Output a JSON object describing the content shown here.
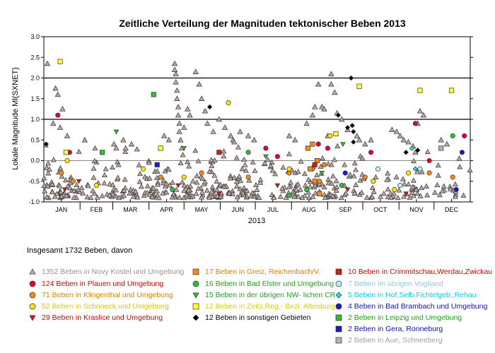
{
  "chart_data": {
    "type": "scatter",
    "title": "Zeitliche Verteilung der Magnituden tektonischer Beben 2013",
    "xlabel": "2013",
    "ylabel": "Lokale Magnitude Ml(SXNET)",
    "ylim": [
      -1.0,
      3.0
    ],
    "yticks": [
      "-1.0",
      "-0.5",
      "0.0",
      "0.5",
      "1.0",
      "1.5",
      "2.0",
      "2.5",
      "3.0"
    ],
    "months": [
      "JAN",
      "FEB",
      "MAR",
      "APR",
      "MAY",
      "JUN",
      "JUL",
      "AUG",
      "SEP",
      "OCT",
      "NOV",
      "DEC"
    ],
    "reference_lines": [
      1.0,
      2.0
    ],
    "summary": "Insgesamt 1732 Beben, davon",
    "series": [
      {
        "name": "1352 Beben in Novy Kostel und Umgebung",
        "count": 1352,
        "marker": "triangle-up",
        "color": "#bfa9a4",
        "points": [
          [
            3,
            2.35
          ],
          [
            8,
            0.9
          ],
          [
            10,
            1.75
          ],
          [
            12,
            1.6
          ],
          [
            14,
            0.8
          ],
          [
            16,
            1.25
          ],
          [
            20,
            0.6
          ],
          [
            35,
            0.5
          ],
          [
            60,
            0.4
          ],
          [
            62,
            0.3
          ],
          [
            68,
            0.5
          ],
          [
            70,
            0.3
          ],
          [
            75,
            0.4
          ],
          [
            100,
            0.3
          ],
          [
            103,
            0.6
          ],
          [
            107,
            0.5
          ],
          [
            112,
            2.35
          ],
          [
            112,
            2.2
          ],
          [
            113,
            2.1
          ],
          [
            113,
            1.9
          ],
          [
            114,
            1.7
          ],
          [
            114,
            1.5
          ],
          [
            115,
            1.3
          ],
          [
            115,
            1.1
          ],
          [
            116,
            0.9
          ],
          [
            116,
            0.7
          ],
          [
            117,
            0.5
          ],
          [
            118,
            0.3
          ],
          [
            120,
            0.8
          ],
          [
            123,
            1.25
          ],
          [
            125,
            1.1
          ],
          [
            130,
            2.15
          ],
          [
            133,
            1.85
          ],
          [
            135,
            1.5
          ],
          [
            138,
            1.2
          ],
          [
            140,
            0.9
          ],
          [
            145,
            0.7
          ],
          [
            150,
            1.0
          ],
          [
            155,
            0.8
          ],
          [
            160,
            0.6
          ],
          [
            162,
            0.5
          ],
          [
            163,
            0.45
          ],
          [
            168,
            0.7
          ],
          [
            175,
            0.6
          ],
          [
            180,
            0.5
          ],
          [
            210,
            0.6
          ],
          [
            215,
            0.5
          ],
          [
            225,
            0.9
          ],
          [
            230,
            1.1
          ],
          [
            232,
            1.3
          ],
          [
            235,
            1.85
          ],
          [
            238,
            1.3
          ],
          [
            240,
            1.25
          ],
          [
            243,
            0.6
          ],
          [
            246,
            2.1
          ],
          [
            246,
            1.85
          ],
          [
            249,
            1.65
          ],
          [
            251,
            1.15
          ],
          [
            255,
            1.0
          ],
          [
            260,
            0.75
          ],
          [
            268,
            0.6
          ],
          [
            270,
            0.5
          ],
          [
            275,
            0.4
          ],
          [
            280,
            0.5
          ],
          [
            298,
            0.75
          ],
          [
            302,
            0.7
          ],
          [
            305,
            0.6
          ],
          [
            308,
            0.5
          ],
          [
            312,
            0.45
          ],
          [
            316,
            0.35
          ],
          [
            318,
            0.2
          ],
          [
            320,
            0.9
          ],
          [
            322,
            1.2
          ],
          [
            325,
            1.1
          ],
          [
            340,
            0.5
          ],
          [
            345,
            0.4
          ]
        ]
      },
      {
        "name": "124 Beben in Plauen und Umgebung",
        "count": 124,
        "marker": "circle",
        "color": "#e3002b",
        "points": [
          [
            12,
            1.1
          ],
          [
            22,
            0.2
          ],
          [
            190,
            0.3
          ],
          [
            200,
            0.1
          ],
          [
            235,
            0.4
          ],
          [
            243,
            0.3
          ],
          [
            280,
            0.2
          ],
          [
            318,
            0.9
          ],
          [
            330,
            0.0
          ],
          [
            360,
            0.6
          ]
        ]
      },
      {
        "name": "71 Beben in Klingenthal und Umgebung",
        "count": 71,
        "marker": "circle",
        "color": "#f08c17",
        "points": [
          [
            15,
            -0.3
          ],
          [
            25,
            -0.5
          ],
          [
            100,
            -0.4
          ],
          [
            135,
            -0.3
          ],
          [
            175,
            -0.4
          ],
          [
            210,
            -0.3
          ],
          [
            230,
            -0.2
          ],
          [
            236,
            -0.5
          ],
          [
            240,
            -0.1
          ],
          [
            275,
            -0.4
          ],
          [
            330,
            -0.3
          ],
          [
            350,
            -0.4
          ]
        ]
      },
      {
        "name": "52 Beben in Schöneck und Umgebung",
        "count": 52,
        "marker": "circle",
        "color": "#ffe600",
        "points": [
          [
            20,
            0.0
          ],
          [
            45,
            -0.6
          ],
          [
            85,
            -0.2
          ],
          [
            120,
            -0.4
          ],
          [
            158,
            1.4
          ],
          [
            210,
            -0.2
          ],
          [
            245,
            0.6
          ],
          [
            282,
            -0.5
          ],
          [
            300,
            -0.7
          ],
          [
            312,
            -0.3
          ]
        ]
      },
      {
        "name": "29 Beben in Kraslice und Umgebung",
        "count": 29,
        "marker": "triangle-down",
        "color": "#d41a1a",
        "points": [
          [
            18,
            -0.7
          ],
          [
            30,
            -0.5
          ],
          [
            115,
            -0.6
          ],
          [
            150,
            -0.8
          ],
          [
            200,
            -0.6
          ],
          [
            260,
            -0.7
          ],
          [
            310,
            -0.8
          ]
        ]
      },
      {
        "name": "17 Beben in Greiz, Reichenbach/V.",
        "count": 17,
        "marker": "square",
        "color": "#f08c17",
        "points": [
          [
            226,
            0.3
          ],
          [
            228,
            -0.2
          ],
          [
            230,
            0.4
          ],
          [
            232,
            -0.5
          ],
          [
            234,
            0.0
          ],
          [
            236,
            -0.8
          ]
        ]
      },
      {
        "name": "16 Beben in Bad Elster und Umgebung",
        "count": 16,
        "marker": "circle",
        "color": "#2fc02f",
        "points": [
          [
            110,
            -0.7
          ],
          [
            175,
            0.2
          ],
          [
            210,
            -0.85
          ],
          [
            225,
            -0.7
          ],
          [
            255,
            -0.6
          ],
          [
            350,
            0.6
          ]
        ]
      },
      {
        "name": "15 Beben in der übrigen NW- lichen CR",
        "count": 15,
        "marker": "triangle-down",
        "color": "#2fc02f",
        "points": [
          [
            62,
            0.7
          ],
          [
            120,
            0.3
          ],
          [
            190,
            0.1
          ],
          [
            238,
            -0.3
          ],
          [
            256,
            0.4
          ]
        ]
      },
      {
        "name": "12 Beben in Zeitz,Reg.- Bezi. Altenburg",
        "count": 12,
        "marker": "square",
        "color": "#ffff33",
        "points": [
          [
            14,
            2.4
          ],
          [
            19,
            0.2
          ],
          [
            100,
            0.3
          ],
          [
            250,
            0.65
          ],
          [
            270,
            1.8
          ],
          [
            322,
            1.7
          ],
          [
            349,
            1.7
          ]
        ]
      },
      {
        "name": "12 Beben in sonstigen Gebieten",
        "count": 12,
        "marker": "diamond",
        "color": "#000000",
        "points": [
          [
            2,
            0.4
          ],
          [
            142,
            1.3
          ],
          [
            252,
            1.1
          ],
          [
            263,
            2.0
          ],
          [
            264,
            0.85
          ],
          [
            265,
            0.7
          ],
          [
            265,
            0.45
          ],
          [
            260,
            0.8
          ],
          [
            310,
            0.2
          ],
          [
            320,
            0.25
          ]
        ]
      },
      {
        "name": "10 Beben in Crimmitschau,Werdau,Zwickau",
        "count": 10,
        "marker": "square",
        "color": "#d41a1a",
        "points": [
          [
            150,
            0.2
          ],
          [
            232,
            -0.1
          ]
        ]
      },
      {
        "name": "7 Beben im übrigen Vogtland",
        "count": 7,
        "marker": "circle",
        "color": "#b8f2ff",
        "points": [
          [
            286,
            -0.2
          ],
          [
            305,
            -0.6
          ],
          [
            322,
            -0.2
          ]
        ]
      },
      {
        "name": "5 Beben in Hof,Selb,Fichtelgeb.,Rehau",
        "count": 5,
        "marker": "diamond",
        "color": "#2ad8f0",
        "points": [
          [
            258,
            -0.3
          ],
          [
            315,
            0.3
          ],
          [
            318,
            -0.2
          ]
        ]
      },
      {
        "name": "4 Beben in Bad Brambach und Umgebung",
        "count": 4,
        "marker": "circle",
        "color": "#1a1acc",
        "points": [
          [
            258,
            -0.3
          ],
          [
            358,
            0.2
          ],
          [
            353,
            -0.7
          ]
        ]
      },
      {
        "name": "2 Beben in Leipzig und Umgebung",
        "count": 2,
        "marker": "square",
        "color": "#2fc02f",
        "points": [
          [
            50,
            0.2
          ],
          [
            94,
            1.6
          ]
        ]
      },
      {
        "name": "2 Beben in Gera, Ronneburg",
        "count": 2,
        "marker": "square",
        "color": "#1a1acc",
        "points": [
          [
            97,
            -0.1
          ]
        ]
      },
      {
        "name": "2 Beben in Aue, Schneeberg",
        "count": 2,
        "marker": "square",
        "color": "#b3b3b3",
        "points": [
          [
            340,
            0.3
          ]
        ]
      }
    ]
  }
}
